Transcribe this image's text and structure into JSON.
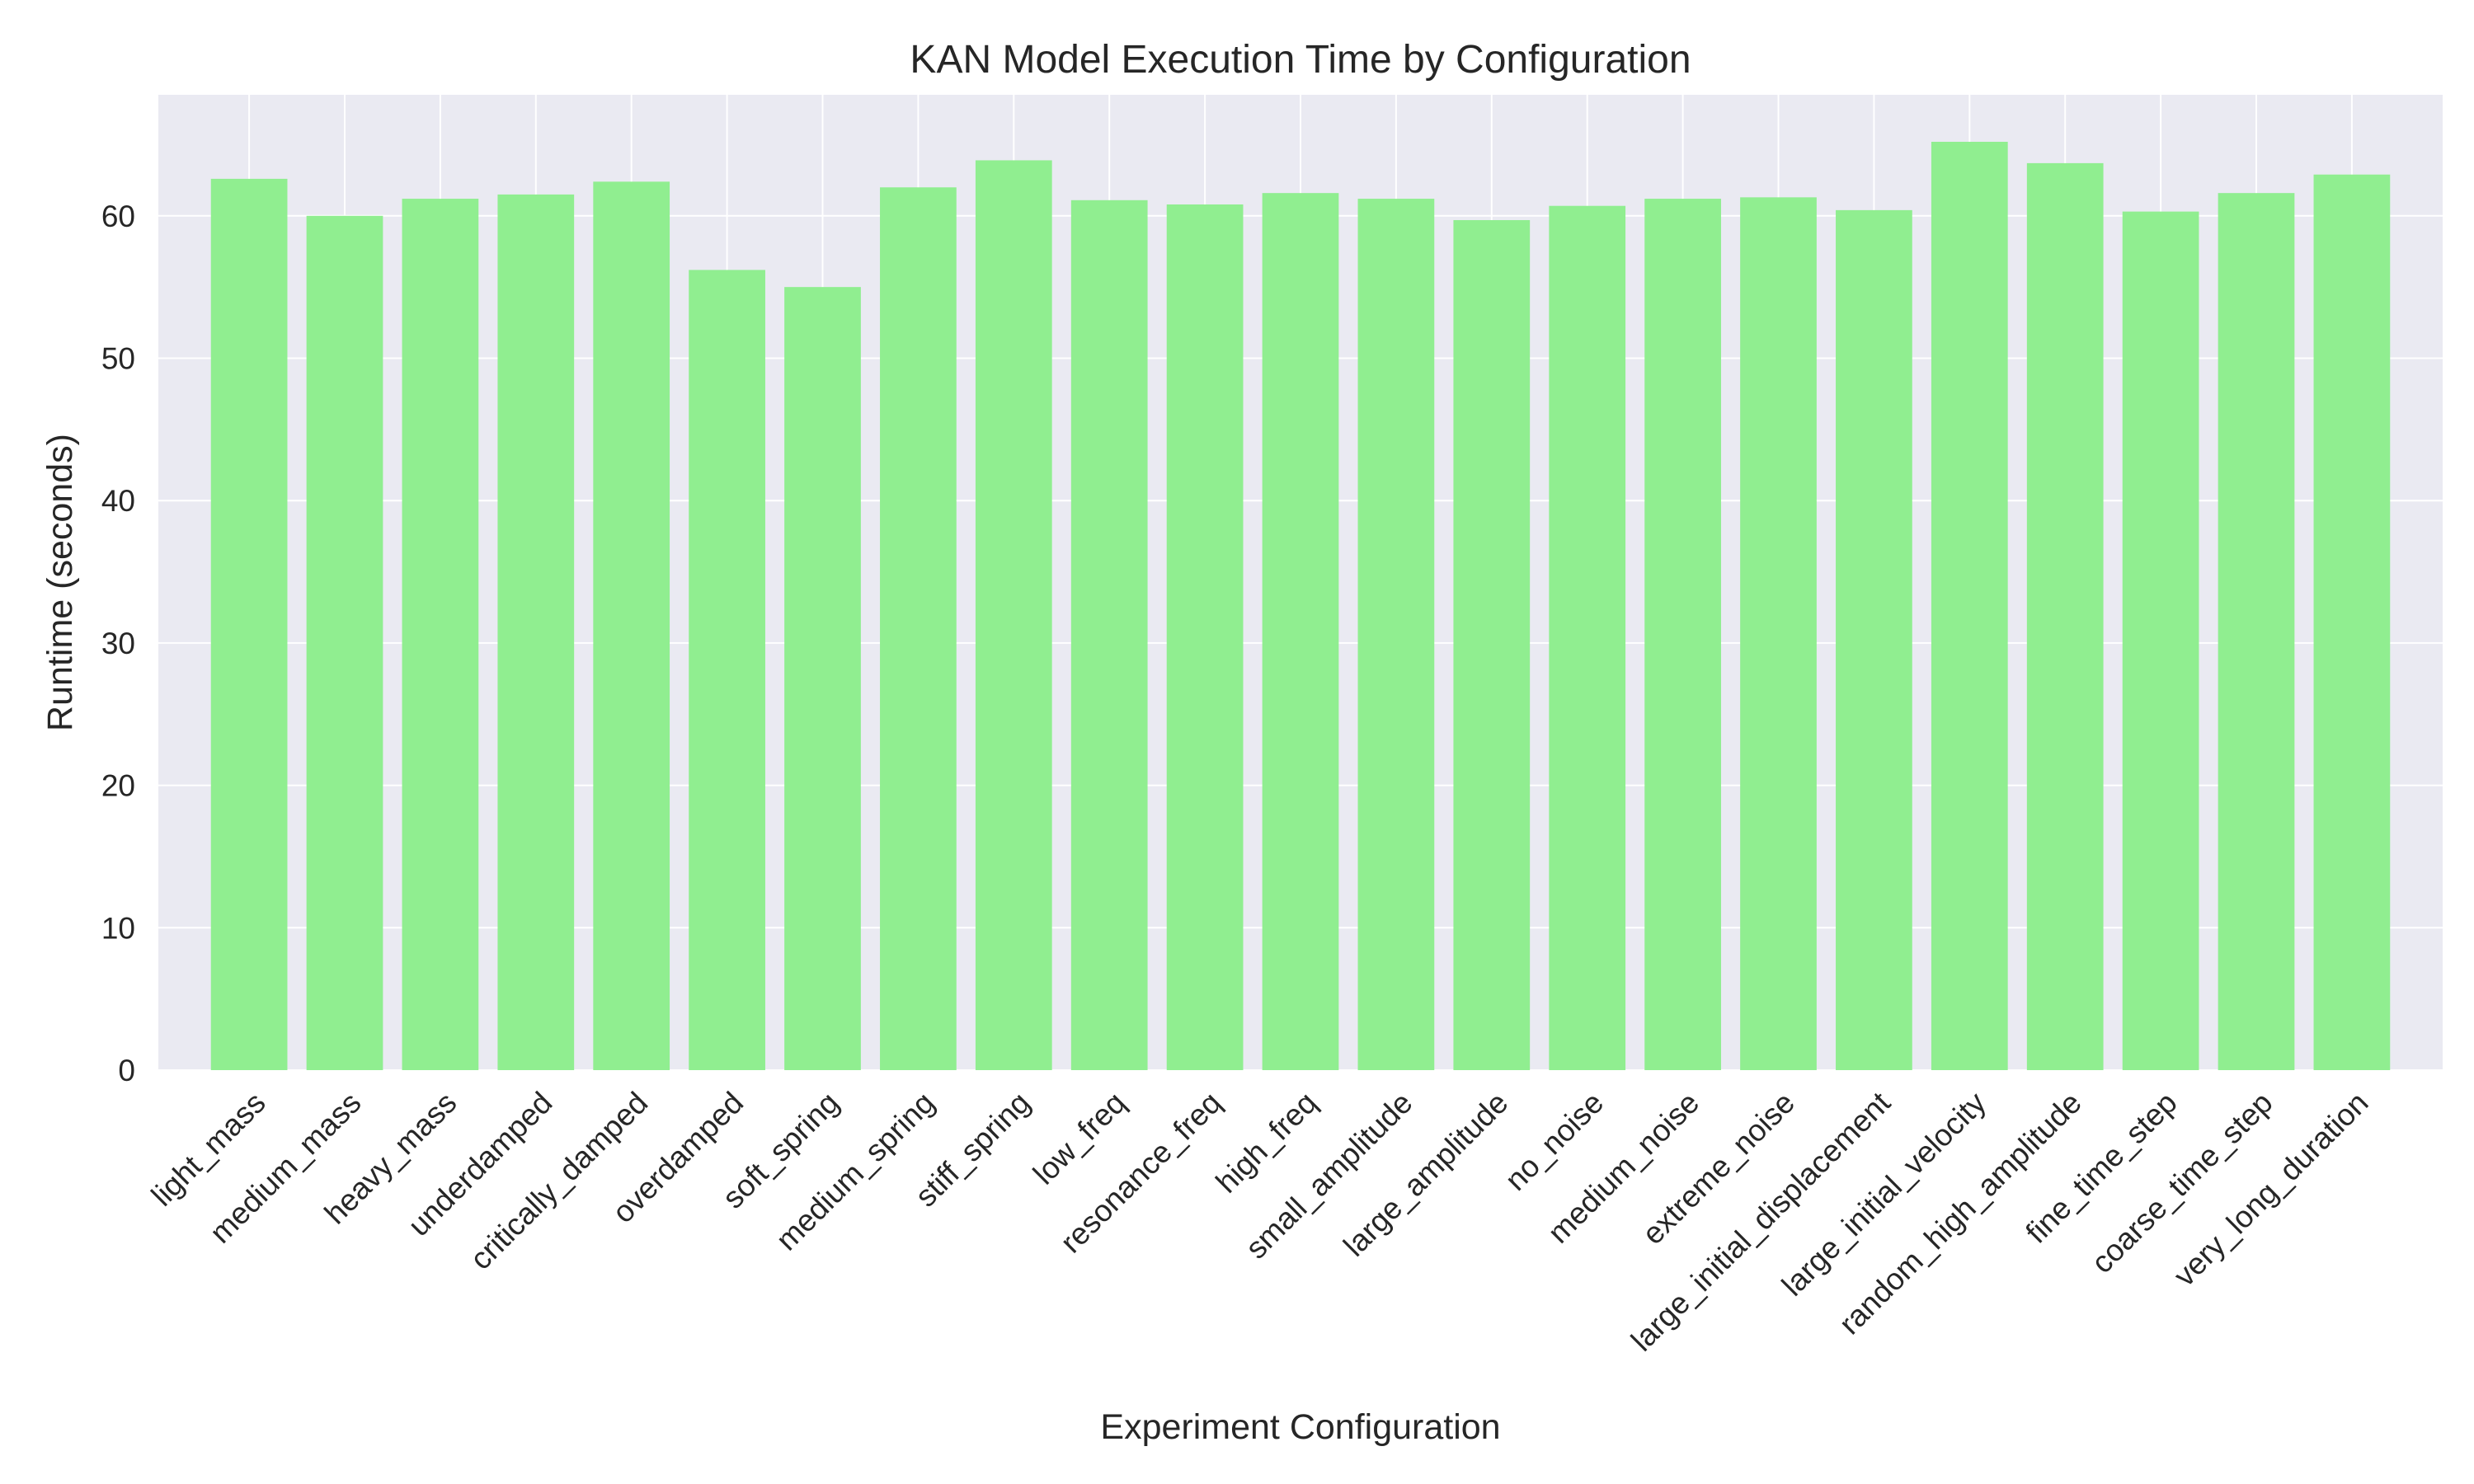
{
  "chart_data": {
    "type": "bar",
    "title": "KAN Model Execution Time by Configuration",
    "xlabel": "Experiment Configuration",
    "ylabel": "Runtime (seconds)",
    "ylim": [
      0,
      68.5
    ],
    "yticks": [
      0,
      10,
      20,
      30,
      40,
      50,
      60
    ],
    "grid": true,
    "bar_color": "#90EE90",
    "background_color": "#EAEAF2",
    "categories": [
      "light_mass",
      "medium_mass",
      "heavy_mass",
      "underdamped",
      "critically_damped",
      "overdamped",
      "soft_spring",
      "medium_spring",
      "stiff_spring",
      "low_freq",
      "resonance_freq",
      "high_freq",
      "small_amplitude",
      "large_amplitude",
      "no_noise",
      "medium_noise",
      "extreme_noise",
      "large_initial_displacement",
      "large_initial_velocity",
      "random_high_amplitude",
      "fine_time_step",
      "coarse_time_step",
      "very_long_duration"
    ],
    "values": [
      62.6,
      60.0,
      61.2,
      61.5,
      62.4,
      56.2,
      55.0,
      62.0,
      63.9,
      61.1,
      60.8,
      61.6,
      61.2,
      59.7,
      60.7,
      61.2,
      61.3,
      60.4,
      65.2,
      63.7,
      60.3,
      61.6,
      62.9
    ]
  }
}
